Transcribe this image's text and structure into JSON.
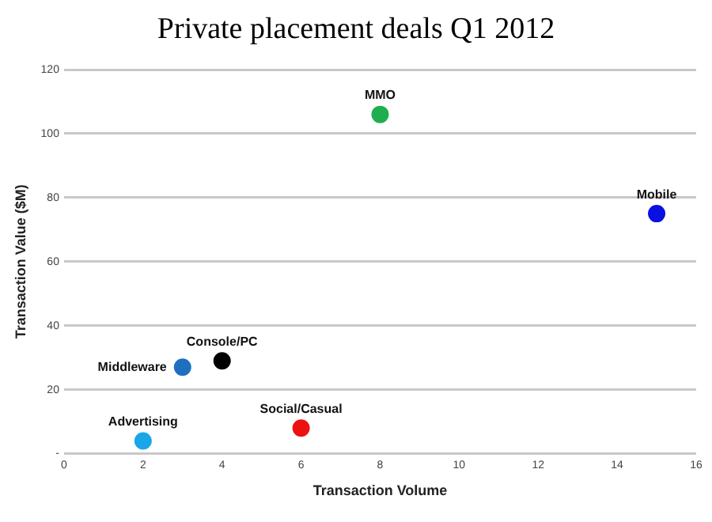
{
  "chart_data": {
    "type": "scatter",
    "title": "Private placement deals Q1 2012",
    "xlabel": "Transaction Volume",
    "ylabel": "Transaction Value ($M)",
    "xlim": [
      0,
      16
    ],
    "xticks": [
      0,
      2,
      4,
      6,
      8,
      10,
      12,
      14,
      16
    ],
    "ylim": [
      0,
      120
    ],
    "yticks": [
      {
        "value": 0,
        "label": "-"
      },
      20,
      40,
      60,
      80,
      100,
      120
    ],
    "grid": "y",
    "legend": false,
    "marker": "circle",
    "series": [
      {
        "name": "Advertising",
        "color": "#1aa7e8",
        "x": [
          2
        ],
        "values": [
          4
        ]
      },
      {
        "name": "Middleware",
        "color": "#1f6fc0",
        "x": [
          3
        ],
        "values": [
          27
        ]
      },
      {
        "name": "Console/PC",
        "color": "#000000",
        "x": [
          4
        ],
        "values": [
          29
        ]
      },
      {
        "name": "Social/Casual",
        "color": "#ee1111",
        "x": [
          6
        ],
        "values": [
          8
        ]
      },
      {
        "name": "MMO",
        "color": "#1fae4f",
        "x": [
          8
        ],
        "values": [
          106
        ]
      },
      {
        "name": "Mobile",
        "color": "#0a10e0",
        "x": [
          15
        ],
        "values": [
          75
        ]
      }
    ]
  }
}
